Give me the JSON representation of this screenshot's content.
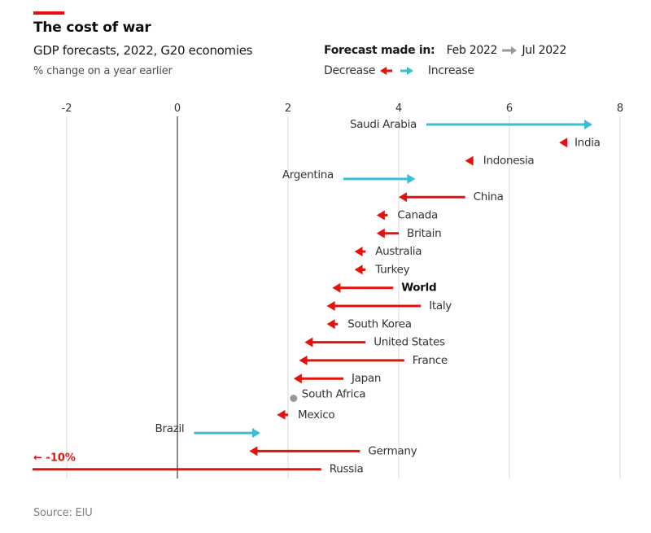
{
  "header": {
    "title": "The cost of war",
    "subtitle": "GDP forecasts, 2022, G20 economies",
    "unit": "% change on a year earlier"
  },
  "legend": {
    "forecast_label": "Forecast made in:",
    "from": "Feb 2022",
    "to": "Jul 2022",
    "decrease": "Decrease",
    "increase": "Increase"
  },
  "source": "Source: EIU",
  "colors": {
    "decrease": "#e3120b",
    "increase": "#3ebcd2",
    "unchanged": "#999999",
    "brand": "#e3120b"
  },
  "chart_data": {
    "type": "arrow-dot",
    "title": "The cost of war",
    "subtitle": "GDP forecasts, 2022, G20 economies",
    "xlabel": "% change on a year earlier",
    "ylabel": "",
    "xlim": [
      -2.6,
      8.3
    ],
    "xticks": [
      -2,
      0,
      2,
      4,
      6,
      8
    ],
    "xtick_labels": [
      "-2",
      "0",
      "2",
      "4",
      "6",
      "8"
    ],
    "grid": true,
    "legend_position": "top-right",
    "series": [
      {
        "name": "Feb 2022 forecast",
        "role": "start"
      },
      {
        "name": "Jul 2022 forecast",
        "role": "end"
      }
    ],
    "rows": [
      {
        "country": "Saudi Arabia",
        "feb": 4.5,
        "jul": 7.5,
        "label_side": "left"
      },
      {
        "country": "India",
        "feb": 7.0,
        "jul": 6.9,
        "label_side": "right"
      },
      {
        "country": "Indonesia",
        "feb": 5.35,
        "jul": 5.2,
        "label_side": "right"
      },
      {
        "country": "Argentina",
        "feb": 3.0,
        "jul": 4.3,
        "label_side": "left"
      },
      {
        "country": "China",
        "feb": 5.2,
        "jul": 4.0,
        "label_side": "right"
      },
      {
        "country": "Canada",
        "feb": 3.8,
        "jul": 3.6,
        "label_side": "right"
      },
      {
        "country": "Britain",
        "feb": 4.0,
        "jul": 3.6,
        "label_side": "right"
      },
      {
        "country": "Australia",
        "feb": 3.4,
        "jul": 3.2,
        "label_side": "right"
      },
      {
        "country": "Turkey",
        "feb": 3.4,
        "jul": 3.2,
        "label_side": "right"
      },
      {
        "country": "World",
        "feb": 3.9,
        "jul": 2.8,
        "label_side": "right",
        "highlight": true
      },
      {
        "country": "Italy",
        "feb": 4.4,
        "jul": 2.7,
        "label_side": "right"
      },
      {
        "country": "South Korea",
        "feb": 2.9,
        "jul": 2.7,
        "label_side": "right"
      },
      {
        "country": "United States",
        "feb": 3.4,
        "jul": 2.3,
        "label_side": "right"
      },
      {
        "country": "France",
        "feb": 4.1,
        "jul": 2.2,
        "label_side": "right"
      },
      {
        "country": "Japan",
        "feb": 3.0,
        "jul": 2.1,
        "label_side": "right"
      },
      {
        "country": "South Africa",
        "feb": 2.1,
        "jul": 2.1,
        "label_side": "right"
      },
      {
        "country": "Mexico",
        "feb": 2.0,
        "jul": 1.8,
        "label_side": "right"
      },
      {
        "country": "Brazil",
        "feb": 0.3,
        "jul": 1.5,
        "label_side": "left"
      },
      {
        "country": "Germany",
        "feb": 3.3,
        "jul": 1.3,
        "label_side": "right"
      },
      {
        "country": "Russia",
        "feb": 2.6,
        "jul": -10,
        "label_side": "right",
        "offscale_label": "← -10%"
      }
    ]
  }
}
